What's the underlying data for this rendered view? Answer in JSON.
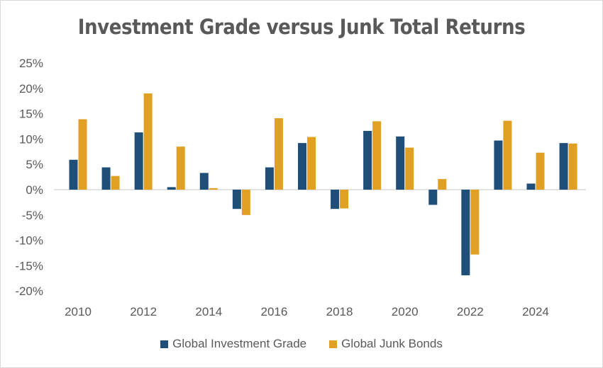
{
  "chart_data": {
    "type": "bar",
    "title": "Investment Grade versus Junk Total Returns",
    "xlabel": "",
    "ylabel": "",
    "categories": [
      "2010",
      "2011",
      "2012",
      "2013",
      "2014",
      "2015",
      "2016",
      "2017",
      "2018",
      "2019",
      "2020",
      "2021",
      "2022",
      "2023",
      "2024",
      "2025"
    ],
    "x_tick_labels": [
      "2010",
      "2012",
      "2014",
      "2016",
      "2018",
      "2020",
      "2022",
      "2024"
    ],
    "y_tick_labels": [
      "25%",
      "20%",
      "15%",
      "10%",
      "5%",
      "0%",
      "-5%",
      "-10%",
      "-15%",
      "-20%"
    ],
    "ylim": [
      -20,
      25
    ],
    "grid": false,
    "legend": "bottom",
    "series": [
      {
        "name": "Global Investment Grade",
        "color": "#1f4e79",
        "values": [
          5.9,
          4.4,
          11.3,
          0.5,
          3.3,
          -3.8,
          4.4,
          9.2,
          -3.8,
          11.6,
          10.5,
          -3.0,
          -16.9,
          9.7,
          1.2,
          9.2
        ]
      },
      {
        "name": "Global Junk Bonds",
        "color": "#e0a024",
        "values": [
          13.9,
          2.7,
          19.0,
          8.5,
          0.3,
          -5.0,
          14.1,
          10.4,
          -3.7,
          13.5,
          8.3,
          2.1,
          -12.8,
          13.6,
          7.3,
          9.1
        ]
      }
    ]
  }
}
